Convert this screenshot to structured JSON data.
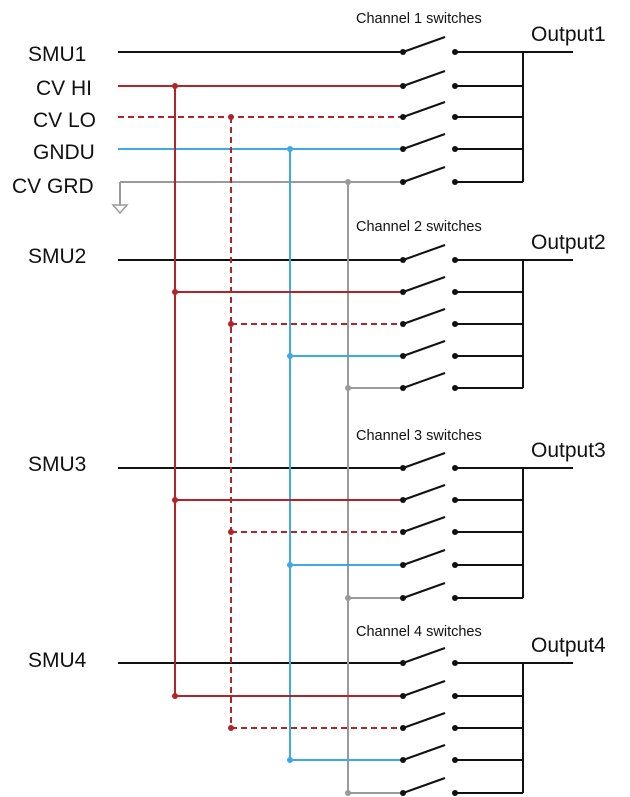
{
  "inputs": {
    "smu1": "SMU1",
    "cv_hi": "CV HI",
    "cv_lo": "CV LO",
    "gndu": "GNDU",
    "cv_grd": "CV GRD",
    "smu2": "SMU2",
    "smu3": "SMU3",
    "smu4": "SMU4"
  },
  "groups": [
    {
      "title": "Channel 1 switches",
      "output": "Output1"
    },
    {
      "title": "Channel 2 switches",
      "output": "Output2"
    },
    {
      "title": "Channel 3 switches",
      "output": "Output3"
    },
    {
      "title": "Channel 4 switches",
      "output": "Output4"
    }
  ],
  "colors": {
    "smu": "#111111",
    "cv_hi": "#b3242a",
    "cv_lo": "#b3242a",
    "gndu": "#3fa9e6",
    "cv_grd": "#9a9a9a"
  }
}
